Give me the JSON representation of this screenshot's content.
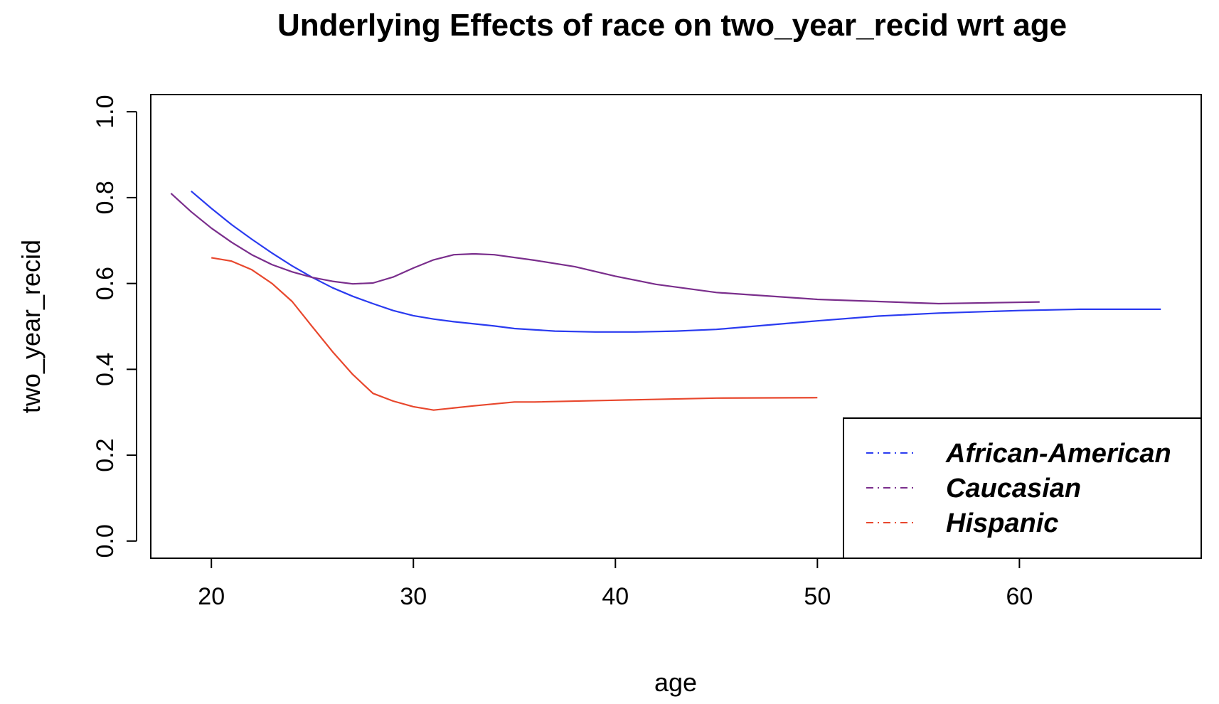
{
  "chart_data": {
    "type": "line",
    "title": "Underlying Effects of  race  on  two_year_recid  wrt  age",
    "xlabel": "age",
    "ylabel": "two_year_recid",
    "xlim": [
      17,
      69
    ],
    "ylim": [
      -0.04,
      1.04
    ],
    "xticks": [
      20,
      30,
      40,
      50,
      60
    ],
    "yticks": [
      0.0,
      0.2,
      0.4,
      0.6,
      0.8,
      1.0
    ],
    "xtick_labels": [
      "20",
      "30",
      "40",
      "50",
      "60"
    ],
    "ytick_labels": [
      "0.0",
      "0.2",
      "0.4",
      "0.6",
      "0.8",
      "1.0"
    ],
    "grid": false,
    "legend_position": "bottom-right",
    "series": [
      {
        "name": "African-American",
        "color": "#2A3BF0",
        "x": [
          19,
          20,
          21,
          22,
          23,
          24,
          25,
          26,
          27,
          28,
          29,
          30,
          31,
          32,
          34,
          35,
          37,
          39,
          41,
          43,
          45,
          48,
          50,
          53,
          56,
          60,
          63,
          67
        ],
        "y": [
          0.815,
          0.775,
          0.737,
          0.703,
          0.671,
          0.641,
          0.614,
          0.59,
          0.57,
          0.553,
          0.537,
          0.525,
          0.517,
          0.511,
          0.501,
          0.495,
          0.489,
          0.487,
          0.487,
          0.489,
          0.493,
          0.505,
          0.513,
          0.524,
          0.531,
          0.537,
          0.54,
          0.54
        ]
      },
      {
        "name": "Caucasian",
        "color": "#7A2E8C",
        "x": [
          18,
          19,
          20,
          21,
          22,
          23,
          24,
          25,
          26,
          27,
          28,
          29,
          30,
          31,
          32,
          33,
          34,
          36,
          38,
          40,
          42,
          45,
          50,
          56,
          61
        ],
        "y": [
          0.81,
          0.767,
          0.729,
          0.696,
          0.667,
          0.644,
          0.627,
          0.614,
          0.605,
          0.599,
          0.601,
          0.615,
          0.636,
          0.655,
          0.667,
          0.669,
          0.667,
          0.654,
          0.639,
          0.617,
          0.598,
          0.579,
          0.563,
          0.553,
          0.557
        ]
      },
      {
        "name": "Hispanic",
        "color": "#E8472D",
        "x": [
          20,
          21,
          22,
          23,
          24,
          25,
          26,
          27,
          28,
          29,
          30,
          31,
          33,
          35,
          36,
          40,
          45,
          50
        ],
        "y": [
          0.66,
          0.652,
          0.632,
          0.6,
          0.558,
          0.499,
          0.441,
          0.388,
          0.344,
          0.326,
          0.313,
          0.305,
          0.315,
          0.324,
          0.324,
          0.328,
          0.333,
          0.334
        ]
      }
    ]
  }
}
